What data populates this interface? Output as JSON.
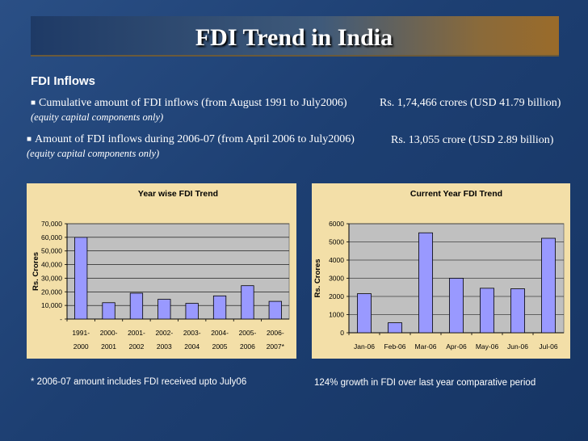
{
  "slide": {
    "title": "FDI Trend in India",
    "subhead": "FDI Inflows",
    "line1": "Cumulative amount of FDI inflows (from August 1991 to July2006)",
    "line1_value": "Rs. 1,74,466 crores (USD 41.79 billion)",
    "line1_note": "(equity capital components only)",
    "line2": "Amount of FDI inflows during 2006-07 (from April 2006 to July2006)",
    "line2_value": "Rs. 13,055 crore (USD 2.89 billion)",
    "line2_note": "(equity capital components only)",
    "footnote_left": "* 2006-07 amount includes FDI received upto July06",
    "footnote_right": "124% growth in FDI over last year comparative period"
  },
  "colors": {
    "bar": "#9999ff",
    "plot_bg": "#c0c0c0",
    "chart_bg": "#f3dfa8"
  },
  "chart_data": [
    {
      "type": "bar",
      "title": "Year wise FDI Trend",
      "ylabel": "Rs. Crores",
      "xlabel": "",
      "categories": [
        [
          "1991-",
          "2000"
        ],
        [
          "2000-",
          "2001"
        ],
        [
          "2001-",
          "2002"
        ],
        [
          "2002-",
          "2003"
        ],
        [
          "2003-",
          "2004"
        ],
        [
          "2004-",
          "2005"
        ],
        [
          "2005-",
          "2006"
        ],
        [
          "2006-",
          "2007*"
        ]
      ],
      "values": [
        60000,
        12000,
        19000,
        14500,
        11500,
        17000,
        24500,
        13000
      ],
      "ylim": [
        0,
        70000
      ],
      "yticks": [
        0,
        10000,
        20000,
        30000,
        40000,
        50000,
        60000,
        70000
      ],
      "yticklabels": [
        "-",
        "10,000",
        "20,000",
        "30,000",
        "40,000",
        "50,000",
        "60,000",
        "70,000"
      ],
      "grid": true
    },
    {
      "type": "bar",
      "title": "Current Year FDI Trend",
      "ylabel": "Rs. Crores",
      "xlabel": "",
      "categories": [
        [
          "Jan-06"
        ],
        [
          "Feb-06"
        ],
        [
          "Mar-06"
        ],
        [
          "Apr-06"
        ],
        [
          "May-06"
        ],
        [
          "Jun-06"
        ],
        [
          "Jul-06"
        ]
      ],
      "values": [
        2150,
        550,
        5500,
        3000,
        2450,
        2420,
        5200
      ],
      "ylim": [
        0,
        6000
      ],
      "yticks": [
        0,
        1000,
        2000,
        3000,
        4000,
        5000,
        6000
      ],
      "yticklabels": [
        "0",
        "1000",
        "2000",
        "3000",
        "4000",
        "5000",
        "6000"
      ],
      "grid": true
    }
  ]
}
